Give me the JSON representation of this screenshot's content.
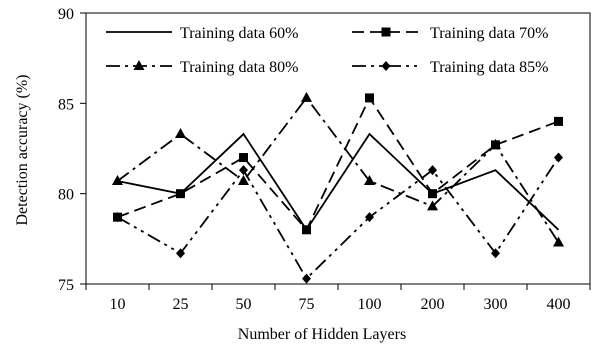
{
  "chart_data": {
    "type": "line",
    "title": "",
    "xlabel": "Number of Hidden Layers",
    "ylabel": "Detection accuracy (%)",
    "categories": [
      "10",
      "25",
      "50",
      "75",
      "100",
      "200",
      "300",
      "400"
    ],
    "ylim": [
      75,
      90
    ],
    "yticks": [
      "75",
      "80",
      "85",
      "90"
    ],
    "grid": false,
    "legend_position": "top",
    "series": [
      {
        "name": "Training data 60%",
        "marker": "none",
        "dash": "solid",
        "color": "#000000",
        "values": [
          80.7,
          80.0,
          83.3,
          78.0,
          83.3,
          80.0,
          81.3,
          78.0
        ]
      },
      {
        "name": "Training data 70%",
        "marker": "square",
        "dash": "dashed",
        "color": "#000000",
        "values": [
          78.7,
          80.0,
          82.0,
          78.0,
          85.3,
          80.0,
          82.7,
          84.0
        ]
      },
      {
        "name": "Training data 80%",
        "marker": "triangle",
        "dash": "dashdot",
        "color": "#000000",
        "values": [
          80.7,
          83.3,
          80.7,
          85.3,
          80.7,
          79.3,
          82.7,
          77.3
        ]
      },
      {
        "name": "Training data 85%",
        "marker": "diamond",
        "dash": "dashdotdot",
        "color": "#000000",
        "values": [
          78.7,
          76.7,
          81.3,
          75.3,
          78.7,
          81.3,
          76.7,
          82.0
        ]
      }
    ]
  }
}
